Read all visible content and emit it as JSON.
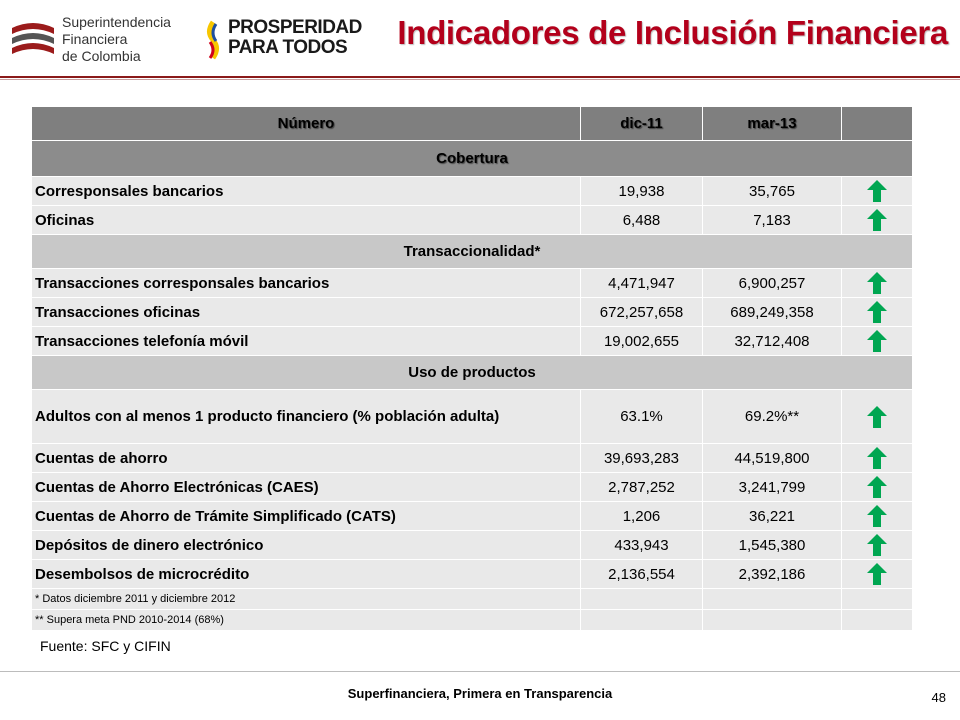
{
  "header": {
    "logo_sfc_lines": [
      "Superintendencia",
      "Financiera",
      "de Colombia"
    ],
    "logo_pp_lines": [
      "PROSPERIDAD",
      "PARA TODOS"
    ],
    "title": "Indicadores de Inclusión Financiera"
  },
  "table": {
    "columns": [
      "Número",
      "dic-11",
      "mar-13",
      ""
    ],
    "sections": [
      {
        "title": "Cobertura",
        "rows": [
          {
            "label": "Corresponsales bancarios",
            "dic11": "19,938",
            "mar13": "35,765"
          },
          {
            "label": "Oficinas",
            "dic11": "6,488",
            "mar13": "7,183"
          }
        ]
      },
      {
        "title": "Transaccionalidad*",
        "rows": [
          {
            "label": "Transacciones corresponsales bancarios",
            "dic11": "4,471,947",
            "mar13": "6,900,257"
          },
          {
            "label": "Transacciones oficinas",
            "dic11": "672,257,658",
            "mar13": "689,249,358"
          },
          {
            "label": "Transacciones telefonía móvil",
            "dic11": "19,002,655",
            "mar13": "32,712,408"
          }
        ]
      },
      {
        "title": "Uso de productos",
        "rows": [
          {
            "label": "Adultos con al menos 1 producto financiero (% población adulta)",
            "dic11": "63.1%",
            "mar13": "69.2%**"
          },
          {
            "label": "Cuentas de ahorro",
            "dic11": "39,693,283",
            "mar13": "44,519,800"
          },
          {
            "label": "Cuentas de Ahorro Electrónicas (CAES)",
            "dic11": "2,787,252",
            "mar13": "3,241,799"
          },
          {
            "label": "Cuentas de Ahorro de Trámite Simplificado (CATS)",
            "dic11": "1,206",
            "mar13": "36,221"
          },
          {
            "label": "Depósitos de dinero electrónico",
            "dic11": "433,943",
            "mar13": "1,545,380"
          },
          {
            "label": "Desembolsos de microcrédito",
            "dic11": "2,136,554",
            "mar13": "2,392,186"
          }
        ]
      }
    ],
    "notes": [
      "* Datos diciembre 2011 y diciembre 2012",
      "** Supera meta PND 2010-2014  (68%)"
    ],
    "trend_icon": "green-up-arrow-icon",
    "colors": {
      "arrow": "#00a651",
      "title": "#b3001b",
      "header_bg": "#7f7f7f",
      "row_bg": "#e9e9e9"
    }
  },
  "source": "Fuente: SFC y CIFIN",
  "footer": {
    "slogan": "Superfinanciera, Primera en Transparencia",
    "page_number": "48"
  }
}
